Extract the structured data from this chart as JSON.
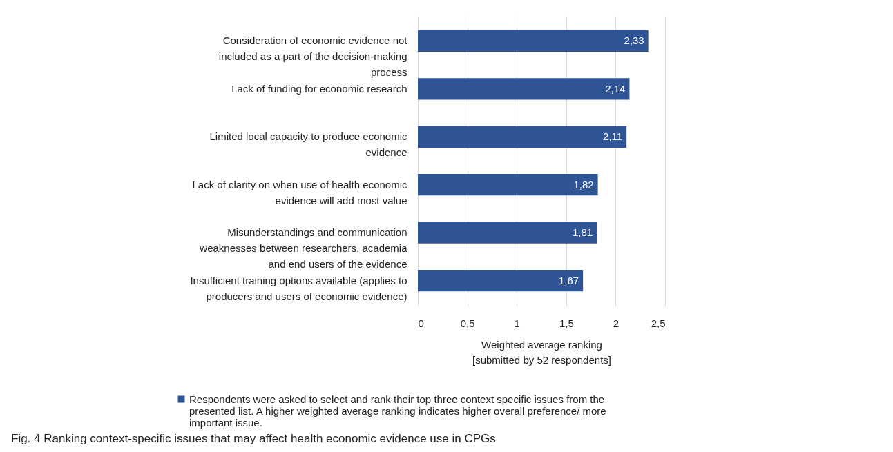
{
  "chart_data": {
    "type": "bar",
    "orientation": "horizontal",
    "categories": [
      "Consideration of economic evidence not included as a part of the decision-making process",
      "Lack of funding for economic research",
      "Limited local capacity to produce economic evidence",
      "Lack of clarity on when use of health economic evidence will add most value",
      "Misunderstandings and communication weaknesses between researchers, academia and end users of the evidence",
      "Insufficient training options available (applies to producers and users of economic evidence)"
    ],
    "series": [
      {
        "name": "Respondents were asked to select and rank their top three context specific issues from the presented list. A higher weighted average ranking indicates higher overall preference/ more important issue.",
        "color": "#2f5597",
        "values": [
          2.33,
          2.14,
          2.11,
          1.82,
          1.81,
          1.67
        ],
        "value_labels": [
          "2,33",
          "2,14",
          "2,11",
          "1,82",
          "1,81",
          "1,67"
        ]
      }
    ],
    "xlim": [
      0,
      2.5
    ],
    "xticks": [
      0,
      {
        "value": 0.5,
        "label": "0,5"
      },
      1,
      {
        "value": 1.5,
        "label": "1,5"
      },
      2,
      {
        "value": 2.5,
        "label": "2,5"
      }
    ],
    "xlabel": "Weighted average ranking [submitted by 52 respondents]",
    "grid": "x",
    "legend": "bottom",
    "annotations": [
      "Fig. 4 Ranking context-specific issues that may affect health economic evidence use in CPGs"
    ]
  }
}
